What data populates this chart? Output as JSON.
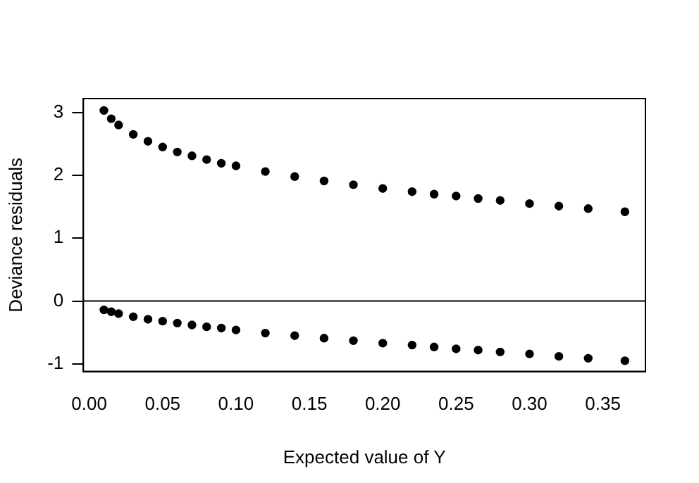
{
  "chart_data": {
    "type": "scatter",
    "xlabel": "Expected value of Y",
    "ylabel": "Deviance residuals",
    "x": [
      0.01,
      0.015,
      0.02,
      0.03,
      0.04,
      0.05,
      0.06,
      0.07,
      0.08,
      0.09,
      0.1,
      0.12,
      0.14,
      0.16,
      0.18,
      0.2,
      0.22,
      0.235,
      0.25,
      0.265,
      0.28,
      0.3,
      0.32,
      0.34,
      0.365
    ],
    "series": [
      {
        "color": "#000000",
        "values": [
          3.03,
          2.9,
          2.8,
          2.65,
          2.54,
          2.45,
          2.37,
          2.31,
          2.25,
          2.19,
          2.15,
          2.06,
          1.98,
          1.91,
          1.85,
          1.79,
          1.74,
          1.7,
          1.67,
          1.63,
          1.6,
          1.55,
          1.51,
          1.47,
          1.42
        ]
      },
      {
        "color": "#000000",
        "values": [
          -0.14,
          -0.17,
          -0.2,
          -0.25,
          -0.29,
          -0.32,
          -0.35,
          -0.38,
          -0.41,
          -0.43,
          -0.46,
          -0.51,
          -0.55,
          -0.59,
          -0.63,
          -0.67,
          -0.7,
          -0.73,
          -0.76,
          -0.78,
          -0.81,
          -0.84,
          -0.88,
          -0.91,
          -0.95
        ]
      }
    ],
    "xlim": [
      -0.004,
      0.379
    ],
    "ylim": [
      -1.12,
      3.22
    ],
    "xticks": [
      {
        "value": 0,
        "label": "0.00"
      },
      {
        "value": 0.05,
        "label": "0.05"
      },
      {
        "value": 0.1,
        "label": "0.10"
      },
      {
        "value": 0.15,
        "label": "0.15"
      },
      {
        "value": 0.2,
        "label": "0.20"
      },
      {
        "value": 0.25,
        "label": "0.25"
      },
      {
        "value": 0.3,
        "label": "0.30"
      },
      {
        "value": 0.35,
        "label": "0.35"
      }
    ],
    "yticks": [
      -1,
      0,
      1,
      2,
      3
    ],
    "ref_lines": [
      {
        "axis": "y",
        "value": 0,
        "color": "#000000",
        "line_style": "solid"
      }
    ],
    "grid": false,
    "legend": false,
    "marker": "circle"
  }
}
